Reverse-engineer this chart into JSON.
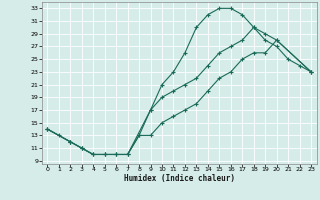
{
  "title": "",
  "xlabel": "Humidex (Indice chaleur)",
  "bg_color": "#d6ece8",
  "line_color": "#1a6b5a",
  "grid_color": "#ffffff",
  "xlim": [
    -0.5,
    23.5
  ],
  "ylim": [
    8.5,
    34
  ],
  "xticks": [
    0,
    1,
    2,
    3,
    4,
    5,
    6,
    7,
    8,
    9,
    10,
    11,
    12,
    13,
    14,
    15,
    16,
    17,
    18,
    19,
    20,
    21,
    22,
    23
  ],
  "yticks": [
    9,
    11,
    13,
    15,
    17,
    19,
    21,
    23,
    25,
    27,
    29,
    31,
    33
  ],
  "line1": {
    "x": [
      0,
      1,
      2,
      3,
      4,
      5,
      6,
      7,
      8,
      9,
      10,
      11,
      12,
      13,
      14,
      15,
      16,
      17,
      18,
      19,
      20,
      21,
      22,
      23
    ],
    "y": [
      14,
      13,
      12,
      11,
      10,
      10,
      10,
      10,
      13,
      17,
      21,
      23,
      26,
      30,
      32,
      33,
      33,
      32,
      30,
      28,
      27,
      25,
      24,
      23
    ]
  },
  "line2": {
    "x": [
      0,
      2,
      3,
      4,
      5,
      6,
      7,
      9,
      10,
      11,
      12,
      13,
      14,
      15,
      16,
      17,
      18,
      19,
      20,
      23
    ],
    "y": [
      14,
      12,
      11,
      10,
      10,
      10,
      10,
      17,
      19,
      20,
      21,
      22,
      24,
      26,
      27,
      28,
      30,
      29,
      28,
      23
    ]
  },
  "line3": {
    "x": [
      0,
      2,
      3,
      4,
      5,
      6,
      7,
      8,
      9,
      10,
      11,
      12,
      13,
      14,
      15,
      16,
      17,
      18,
      19,
      20,
      23
    ],
    "y": [
      14,
      12,
      11,
      10,
      10,
      10,
      10,
      13,
      13,
      15,
      16,
      17,
      18,
      20,
      22,
      23,
      25,
      26,
      26,
      28,
      23
    ]
  }
}
